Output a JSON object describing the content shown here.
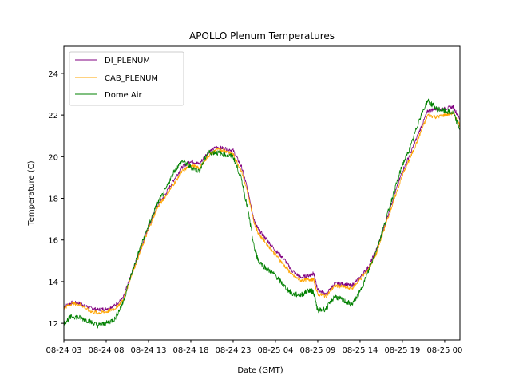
{
  "chart_data": {
    "type": "line",
    "title": "APOLLO Plenum Temperatures",
    "xlabel": "Date (GMT)",
    "ylabel": "Temperature (C)",
    "xlim": [
      0,
      46.8
    ],
    "ylim": [
      11.2,
      25.3
    ],
    "grid": false,
    "legend_position": "top-left",
    "x_ticks": [
      {
        "x": 0,
        "label": "08-24 03"
      },
      {
        "x": 5,
        "label": "08-24 08"
      },
      {
        "x": 10,
        "label": "08-24 13"
      },
      {
        "x": 15,
        "label": "08-24 18"
      },
      {
        "x": 20,
        "label": "08-24 23"
      },
      {
        "x": 25,
        "label": "08-25 04"
      },
      {
        "x": 30,
        "label": "08-25 09"
      },
      {
        "x": 35,
        "label": "08-25 14"
      },
      {
        "x": 40,
        "label": "08-25 19"
      },
      {
        "x": 45,
        "label": "08-25 00"
      }
    ],
    "y_ticks": [
      12,
      14,
      16,
      18,
      20,
      22,
      24
    ],
    "series": [
      {
        "name": "DI_PLENUM",
        "color": "#800080",
        "x": [
          0,
          1,
          2,
          3,
          4,
          5,
          6,
          7,
          8,
          9,
          10,
          11,
          12,
          13,
          14,
          15,
          16,
          17,
          18,
          19,
          20,
          21,
          21.8,
          22.5,
          23,
          24,
          25,
          26,
          27,
          28,
          29,
          29.5,
          30,
          31,
          32,
          33,
          34,
          35,
          36,
          37,
          38,
          39,
          40,
          41,
          42,
          43,
          44,
          45,
          46,
          46.8
        ],
        "y": [
          12.8,
          13.0,
          12.95,
          12.75,
          12.65,
          12.7,
          12.85,
          13.2,
          14.4,
          15.5,
          16.6,
          17.6,
          18.2,
          18.9,
          19.5,
          19.8,
          19.65,
          20.2,
          20.45,
          20.4,
          20.3,
          19.5,
          18.3,
          16.9,
          16.5,
          16.0,
          15.5,
          15.1,
          14.5,
          14.2,
          14.3,
          14.4,
          13.6,
          13.4,
          13.9,
          13.9,
          13.8,
          14.2,
          14.7,
          15.6,
          16.8,
          18.1,
          19.3,
          20.2,
          21.2,
          22.2,
          22.3,
          22.3,
          22.4,
          21.8
        ]
      },
      {
        "name": "CAB_PLENUM",
        "color": "#ffa500",
        "x": [
          0,
          1,
          2,
          3,
          4,
          5,
          6,
          7,
          8,
          9,
          10,
          11,
          12,
          13,
          14,
          15,
          16,
          17,
          18,
          19,
          20,
          21,
          21.8,
          22.5,
          23,
          24,
          25,
          26,
          27,
          28,
          29,
          29.5,
          30,
          31,
          32,
          33,
          34,
          35,
          36,
          37,
          38,
          39,
          40,
          41,
          42,
          43,
          44,
          45,
          46,
          46.8
        ],
        "y": [
          12.75,
          12.95,
          12.9,
          12.6,
          12.5,
          12.55,
          12.7,
          13.1,
          14.3,
          15.4,
          16.5,
          17.5,
          18.1,
          18.7,
          19.3,
          19.6,
          19.45,
          20.0,
          20.35,
          20.3,
          20.1,
          19.3,
          18.1,
          16.8,
          16.3,
          15.8,
          15.3,
          14.8,
          14.3,
          14.05,
          14.1,
          14.1,
          13.4,
          13.3,
          13.8,
          13.75,
          13.65,
          14.1,
          14.6,
          15.4,
          16.7,
          17.9,
          19.1,
          20.0,
          21.0,
          22.0,
          21.9,
          22.0,
          22.1,
          21.5
        ]
      },
      {
        "name": "Dome Air",
        "color": "#008000",
        "x": [
          0,
          1,
          2,
          3,
          4,
          5,
          6,
          7,
          8,
          9,
          10,
          11,
          12,
          13,
          14,
          15,
          16,
          17,
          18,
          19,
          20,
          21,
          21.8,
          22.5,
          23,
          24,
          25,
          26,
          27,
          28,
          29,
          29.5,
          30,
          31,
          32,
          33,
          34,
          35,
          36,
          37,
          38,
          39,
          40,
          41,
          42,
          43,
          44,
          45,
          46,
          46.8
        ],
        "y": [
          12.0,
          12.35,
          12.25,
          12.1,
          11.9,
          12.0,
          12.2,
          13.0,
          14.4,
          15.6,
          16.7,
          17.7,
          18.4,
          19.3,
          19.8,
          19.5,
          19.3,
          20.2,
          20.2,
          20.1,
          20.0,
          18.9,
          17.3,
          15.6,
          15.0,
          14.6,
          14.3,
          13.8,
          13.4,
          13.35,
          13.6,
          13.5,
          12.6,
          12.7,
          13.3,
          13.1,
          12.9,
          13.5,
          14.5,
          15.6,
          16.9,
          18.3,
          19.6,
          20.5,
          21.8,
          22.7,
          22.3,
          22.2,
          22.1,
          21.3
        ]
      }
    ]
  }
}
